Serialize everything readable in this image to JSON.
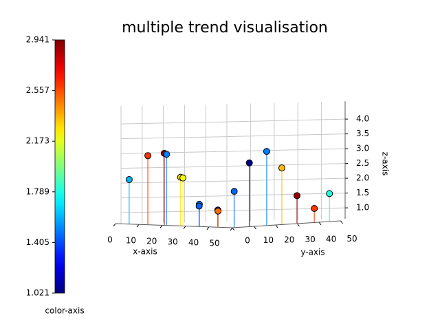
{
  "chart_data": {
    "type": "stem3d",
    "title": "multiple trend visualisation",
    "xlabel": "x-axis",
    "ylabel": "y-axis",
    "zlabel": "z-axis",
    "colorbar_label": "color-axis",
    "xlim": [
      0,
      50
    ],
    "ylim": [
      0,
      50
    ],
    "zlim": [
      0.63,
      4.6
    ],
    "xticks": [
      0,
      10,
      20,
      30,
      40,
      50
    ],
    "yticks": [
      0,
      10,
      20,
      30,
      40,
      50
    ],
    "zticks": [
      {
        "value": 1,
        "label": "1.0"
      },
      {
        "value": 1.5,
        "label": "1.5"
      },
      {
        "value": 2,
        "label": "2.0"
      },
      {
        "value": 2.5,
        "label": "2.5"
      },
      {
        "value": 3,
        "label": "3.0"
      },
      {
        "value": 3.5,
        "label": "3.5"
      },
      {
        "value": 4,
        "label": "4.0"
      }
    ],
    "clim": [
      1.021,
      2.941
    ],
    "cticks": [
      1.021,
      1.405,
      1.789,
      2.173,
      2.557,
      2.941
    ],
    "colormap": "jet",
    "x": [
      4,
      12,
      19,
      20,
      26,
      27,
      34,
      33,
      41,
      42,
      48,
      48,
      48,
      48,
      48,
      48,
      48
    ],
    "y": [
      2,
      2,
      2,
      2,
      2,
      2,
      2,
      3,
      3,
      2,
      3,
      10,
      18,
      25,
      32,
      40,
      47
    ],
    "z": [
      2.12,
      2.95,
      3.05,
      3.02,
      2.26,
      2.24,
      1.37,
      1.3,
      1.19,
      1.16,
      1.84,
      2.77,
      3.12,
      2.53,
      1.56,
      1.09,
      1.56
    ],
    "c": [
      1.6,
      2.6,
      2.9,
      1.5,
      2.3,
      2.2,
      1.5,
      1.45,
      1.1,
      2.5,
      1.45,
      1.05,
      1.5,
      2.35,
      2.9,
      2.6,
      1.8
    ]
  }
}
